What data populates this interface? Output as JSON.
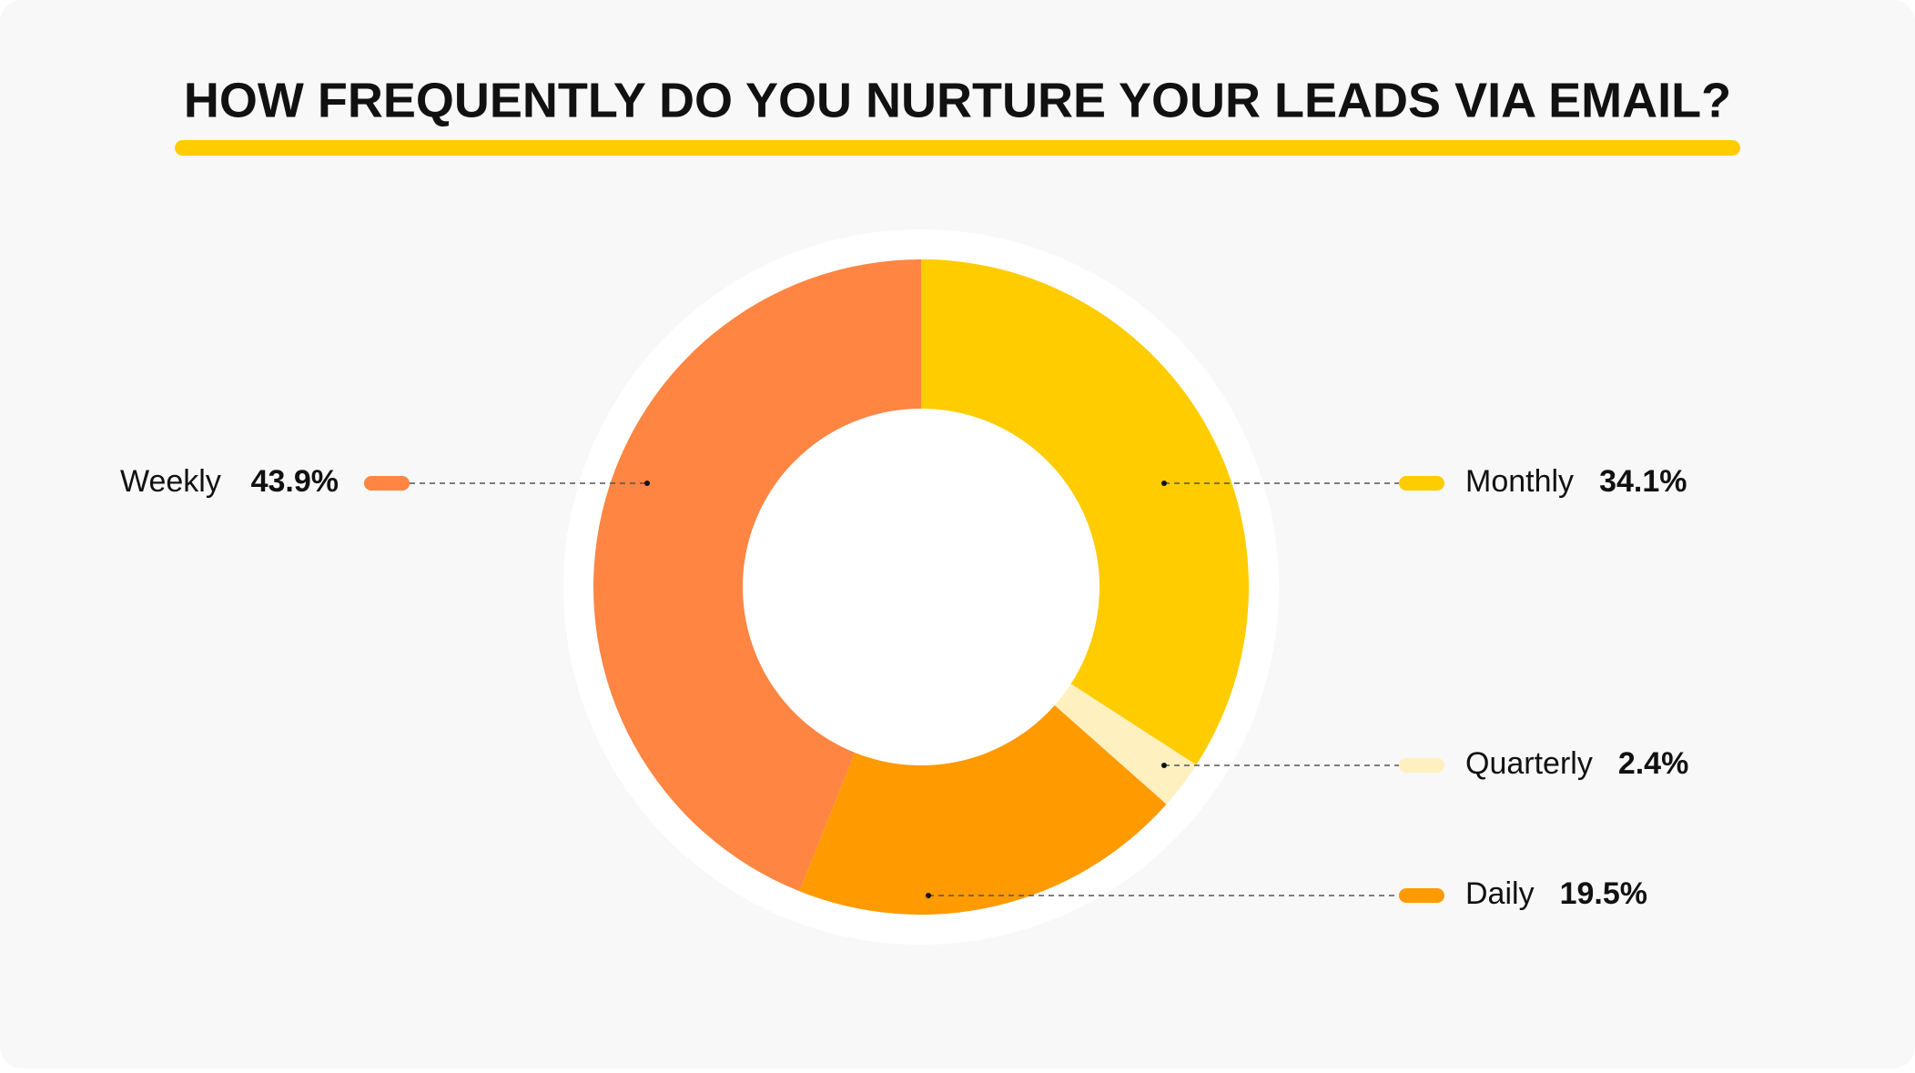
{
  "chart_data": {
    "type": "donut",
    "title": "HOW FREQUENTLY DO YOU NURTURE YOUR LEADS VIA EMAIL?",
    "categories": [
      "Monthly",
      "Quarterly",
      "Daily",
      "Weekly"
    ],
    "values": [
      34.1,
      2.4,
      19.5,
      43.9
    ],
    "value_labels": [
      "34.1%",
      "2.4%",
      "19.5%",
      "43.9%"
    ],
    "colors": [
      "#FFCC00",
      "#FFF0BF",
      "#FF9A00",
      "#FF8542"
    ]
  }
}
